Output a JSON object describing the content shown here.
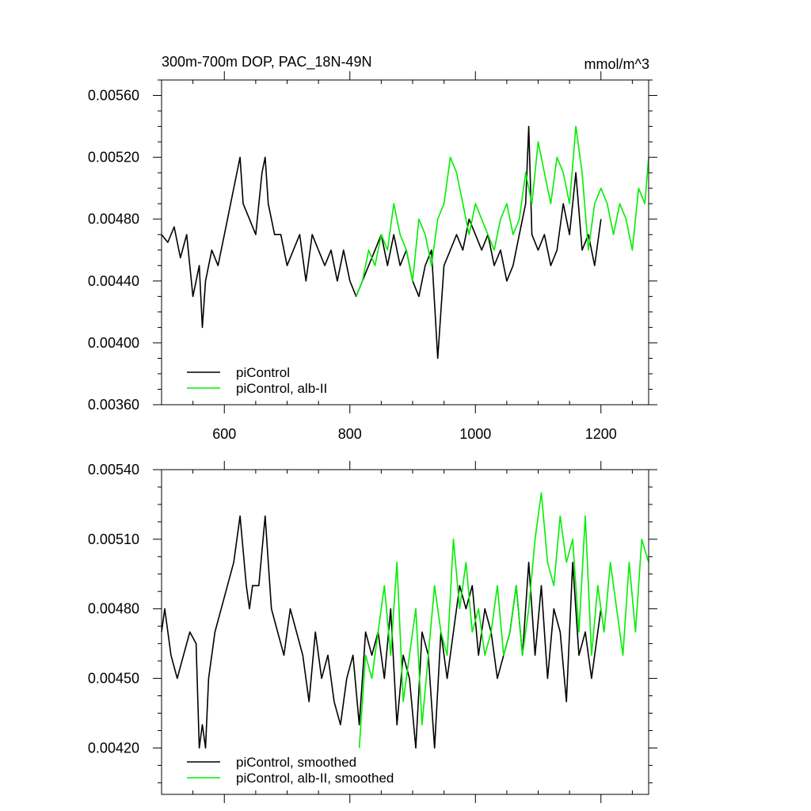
{
  "chart_data": [
    {
      "type": "line",
      "title": "300m-700m DOP, PAC_18N-49N",
      "units": "mmol/m^3",
      "xlim": [
        500,
        1276
      ],
      "ylim": [
        0.0036,
        0.0057
      ],
      "x_ticks": [
        600,
        800,
        1000,
        1200
      ],
      "x_tick_labels": [
        "600",
        "800",
        "1000",
        "1200"
      ],
      "y_ticks": [
        0.0036,
        0.004,
        0.0044,
        0.0048,
        0.0052,
        0.0056
      ],
      "y_tick_labels": [
        "0.00360",
        "0.00400",
        "0.00440",
        "0.00480",
        "0.00520",
        "0.00560"
      ],
      "legend": [
        "piControl",
        "piControl, alb-II"
      ],
      "series": [
        {
          "name": "piControl",
          "color": "#000000",
          "x": [
            500,
            510,
            520,
            530,
            540,
            550,
            560,
            565,
            570,
            580,
            590,
            600,
            610,
            620,
            625,
            630,
            640,
            650,
            660,
            665,
            670,
            680,
            690,
            700,
            710,
            720,
            730,
            740,
            750,
            760,
            770,
            780,
            790,
            800,
            810,
            820,
            830,
            840,
            850,
            860,
            870,
            880,
            890,
            900,
            910,
            920,
            930,
            940,
            950,
            960,
            970,
            980,
            990,
            1000,
            1010,
            1020,
            1030,
            1040,
            1050,
            1060,
            1070,
            1080,
            1085,
            1090,
            1100,
            1110,
            1120,
            1130,
            1140,
            1150,
            1160,
            1170,
            1180,
            1190,
            1200
          ],
          "values": [
            0.0047,
            0.00465,
            0.00475,
            0.00455,
            0.0047,
            0.0043,
            0.0045,
            0.0041,
            0.0044,
            0.0046,
            0.0045,
            0.0047,
            0.0049,
            0.0051,
            0.0052,
            0.0049,
            0.0048,
            0.0047,
            0.0051,
            0.0052,
            0.0049,
            0.0047,
            0.0047,
            0.0045,
            0.0046,
            0.0047,
            0.0044,
            0.0047,
            0.0046,
            0.0045,
            0.0046,
            0.0044,
            0.0046,
            0.0044,
            0.0043,
            0.0044,
            0.0045,
            0.0046,
            0.0047,
            0.0045,
            0.0047,
            0.0045,
            0.0046,
            0.0044,
            0.0043,
            0.0045,
            0.0046,
            0.0039,
            0.0045,
            0.0046,
            0.0047,
            0.0046,
            0.0048,
            0.0047,
            0.0046,
            0.0047,
            0.0045,
            0.0046,
            0.0044,
            0.0045,
            0.0047,
            0.0049,
            0.0054,
            0.0047,
            0.0046,
            0.0047,
            0.0045,
            0.0046,
            0.0049,
            0.0047,
            0.0051,
            0.0046,
            0.0047,
            0.0045,
            0.0048
          ]
        },
        {
          "name": "piControl, alb-II",
          "color": "#00ee00",
          "x": [
            810,
            820,
            830,
            840,
            850,
            860,
            870,
            880,
            890,
            900,
            910,
            920,
            930,
            940,
            950,
            960,
            970,
            980,
            990,
            1000,
            1010,
            1020,
            1030,
            1040,
            1050,
            1060,
            1070,
            1080,
            1090,
            1100,
            1110,
            1120,
            1130,
            1140,
            1150,
            1160,
            1170,
            1180,
            1190,
            1200,
            1210,
            1220,
            1230,
            1240,
            1250,
            1260,
            1270,
            1276
          ],
          "values": [
            0.0043,
            0.0044,
            0.0046,
            0.0045,
            0.0047,
            0.0046,
            0.0049,
            0.0047,
            0.0046,
            0.0044,
            0.0048,
            0.0047,
            0.0045,
            0.0048,
            0.0049,
            0.0052,
            0.0051,
            0.0049,
            0.0047,
            0.0049,
            0.0048,
            0.0047,
            0.0046,
            0.0048,
            0.0049,
            0.0047,
            0.0048,
            0.0051,
            0.0049,
            0.0053,
            0.0051,
            0.0049,
            0.0052,
            0.0051,
            0.0049,
            0.0054,
            0.0051,
            0.0046,
            0.0049,
            0.005,
            0.0049,
            0.0047,
            0.0049,
            0.0048,
            0.0046,
            0.005,
            0.0049,
            0.0052
          ]
        }
      ]
    },
    {
      "type": "line",
      "title": "",
      "units": "",
      "xlim": [
        500,
        1276
      ],
      "ylim": [
        0.004,
        0.0054
      ],
      "x_ticks": [
        600,
        800,
        1000,
        1200
      ],
      "x_tick_labels": [
        "",
        "",
        "",
        ""
      ],
      "y_ticks": [
        0.0042,
        0.0045,
        0.0048,
        0.0051,
        0.0054
      ],
      "y_tick_labels": [
        "0.00420",
        "0.00450",
        "0.00480",
        "0.00510",
        "0.00540"
      ],
      "legend": [
        "piControl, smoothed",
        "piControl, alb-II, smoothed"
      ],
      "series": [
        {
          "name": "piControl, smoothed",
          "color": "#000000",
          "x": [
            500,
            505,
            515,
            525,
            535,
            545,
            555,
            560,
            565,
            570,
            575,
            585,
            595,
            605,
            615,
            625,
            635,
            640,
            645,
            655,
            665,
            675,
            685,
            695,
            705,
            715,
            725,
            735,
            745,
            755,
            765,
            775,
            785,
            795,
            805,
            815,
            825,
            835,
            845,
            855,
            865,
            875,
            885,
            895,
            905,
            915,
            925,
            935,
            945,
            955,
            965,
            975,
            985,
            995,
            1005,
            1015,
            1025,
            1035,
            1045,
            1055,
            1065,
            1075,
            1085,
            1095,
            1105,
            1115,
            1125,
            1135,
            1145,
            1155,
            1165,
            1175,
            1185,
            1195,
            1200
          ],
          "values": [
            0.0047,
            0.0048,
            0.0046,
            0.0045,
            0.0046,
            0.0047,
            0.00465,
            0.0042,
            0.0043,
            0.0042,
            0.0045,
            0.0047,
            0.0048,
            0.0049,
            0.005,
            0.0052,
            0.0049,
            0.0048,
            0.0049,
            0.0049,
            0.0052,
            0.0048,
            0.0047,
            0.0046,
            0.0048,
            0.0047,
            0.0046,
            0.0044,
            0.0047,
            0.0045,
            0.0046,
            0.0044,
            0.0043,
            0.0045,
            0.0046,
            0.0043,
            0.0047,
            0.0046,
            0.0047,
            0.0045,
            0.0048,
            0.0043,
            0.0046,
            0.0045,
            0.0042,
            0.0047,
            0.0046,
            0.0042,
            0.0047,
            0.0045,
            0.0047,
            0.0049,
            0.0048,
            0.0049,
            0.0046,
            0.0048,
            0.0047,
            0.0045,
            0.0046,
            0.0047,
            0.0049,
            0.0046,
            0.005,
            0.0046,
            0.0049,
            0.0045,
            0.0048,
            0.0047,
            0.0044,
            0.005,
            0.0046,
            0.0047,
            0.0045,
            0.0047,
            0.0048
          ]
        },
        {
          "name": "piControl, alb-II, smoothed",
          "color": "#00ee00",
          "x": [
            815,
            820,
            825,
            835,
            845,
            855,
            865,
            875,
            885,
            895,
            905,
            915,
            925,
            935,
            945,
            955,
            965,
            975,
            985,
            995,
            1005,
            1015,
            1025,
            1035,
            1045,
            1055,
            1065,
            1075,
            1085,
            1095,
            1105,
            1115,
            1125,
            1135,
            1145,
            1155,
            1165,
            1175,
            1185,
            1195,
            1205,
            1215,
            1225,
            1235,
            1245,
            1255,
            1265,
            1276
          ],
          "values": [
            0.0042,
            0.0044,
            0.0046,
            0.0045,
            0.0047,
            0.0049,
            0.0046,
            0.005,
            0.0044,
            0.0046,
            0.0048,
            0.0043,
            0.0046,
            0.0049,
            0.0047,
            0.0046,
            0.0051,
            0.0048,
            0.005,
            0.0047,
            0.0048,
            0.0046,
            0.0047,
            0.0049,
            0.0046,
            0.0047,
            0.0049,
            0.0046,
            0.0048,
            0.0051,
            0.0053,
            0.005,
            0.0049,
            0.0052,
            0.005,
            0.0051,
            0.0047,
            0.0052,
            0.0046,
            0.0049,
            0.0047,
            0.005,
            0.0048,
            0.0046,
            0.005,
            0.0047,
            0.0051,
            0.005
          ]
        }
      ]
    }
  ]
}
